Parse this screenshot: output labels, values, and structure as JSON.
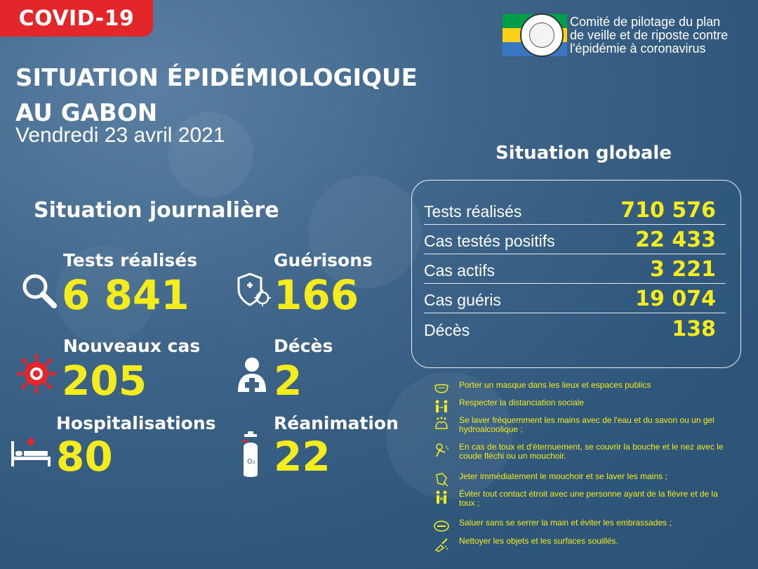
{
  "tag": {
    "label": "COVID-19"
  },
  "title": {
    "line1": "SITUATION ÉPIDÉMIOLOGIQUE",
    "line2": "AU GABON"
  },
  "date": "Vendredi 23 avril 2021",
  "committee": {
    "line1": "Comité de pilotage du plan",
    "line2": "de veille et de riposte contre",
    "line3": "l'épidémie à coronavirus"
  },
  "colors": {
    "accent": "#f4ec1c",
    "tag": "#e3262a",
    "background": "#3d6488"
  },
  "daily": {
    "heading": "Situation journalière",
    "tests": {
      "label": "Tests réalisés",
      "value": "6 841",
      "icon": "magnifier-icon"
    },
    "healed": {
      "label": "Guérisons",
      "value": "166",
      "icon": "shield-virus-icon"
    },
    "new_cases": {
      "label": "Nouveaux cas",
      "value": "205",
      "icon": "virus-icon"
    },
    "deaths": {
      "label": "Décès",
      "value": "2",
      "icon": "person-cross-icon"
    },
    "hospital": {
      "label": "Hospitalisations",
      "value": "80",
      "icon": "hospital-bed-icon"
    },
    "icu": {
      "label": "Réanimation",
      "value": "22",
      "icon": "oxygen-tank-icon"
    }
  },
  "global": {
    "heading": "Situation globale",
    "rows": [
      {
        "label": "Tests réalisés",
        "value": "710 576"
      },
      {
        "label": "Cas testés positifs",
        "value": "22 433"
      },
      {
        "label": "Cas actifs",
        "value": "3 221"
      },
      {
        "label": "Cas guéris",
        "value": "19 074"
      },
      {
        "label": "Décès",
        "value": "138"
      }
    ]
  },
  "advice": [
    {
      "text": "Porter un masque dans les lieux et espaces publics",
      "icon": "mask-icon"
    },
    {
      "text": "Respecter la distanciation sociale",
      "icon": "distancing-icon"
    },
    {
      "text": "Se laver fréquemment les mains avec de l'eau et du savon ou un gel hydroalcoolique ;",
      "icon": "hand-wash-icon"
    },
    {
      "text": "En cas de toux et d'éternuement, se couvrir la bouche et le nez avec le coude fléchi ou un mouchoir.",
      "icon": "cough-icon"
    },
    {
      "text": "Jeter immédiatement le mouchoir et se laver les mains ;",
      "icon": "tissue-icon"
    },
    {
      "text": "Éviter tout contact étroit avec une personne ayant de la fièvre et de la toux ;",
      "icon": "avoid-contact-icon"
    },
    {
      "text": "Saluer sans se serrer la main et éviter les embrassades ;",
      "icon": "no-handshake-icon"
    },
    {
      "text": "Nettoyer les objets et les surfaces souillés.",
      "icon": "cleaning-icon"
    }
  ]
}
